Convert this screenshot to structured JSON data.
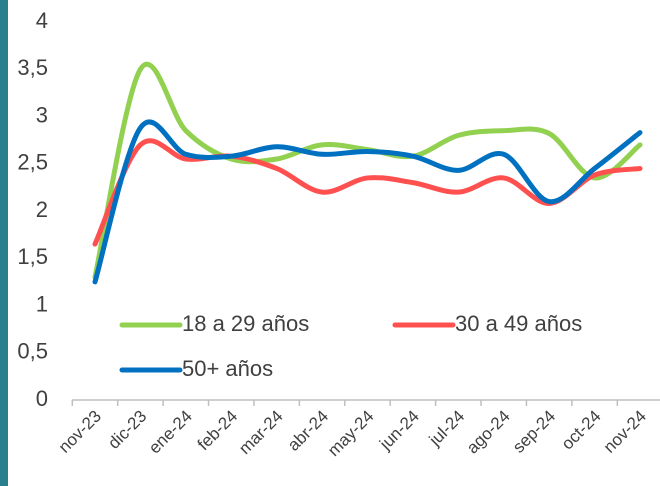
{
  "chart_data": {
    "type": "line",
    "categories": [
      "nov-23",
      "dic-23",
      "ene-24",
      "feb-24",
      "mar-24",
      "abr-24",
      "may-24",
      "jun-24",
      "jul-24",
      "ago-24",
      "sep-24",
      "oct-24",
      "nov-24"
    ],
    "series": [
      {
        "name": "18 a 29 años",
        "color": "#92d050",
        "values": [
          1.3,
          3.5,
          2.85,
          2.55,
          2.55,
          2.7,
          2.65,
          2.58,
          2.8,
          2.85,
          2.82,
          2.35,
          2.7
        ]
      },
      {
        "name": "30 a 49 años",
        "color": "#ff5050",
        "values": [
          1.65,
          2.7,
          2.55,
          2.58,
          2.45,
          2.2,
          2.35,
          2.3,
          2.2,
          2.35,
          2.08,
          2.38,
          2.45
        ]
      },
      {
        "name": "50+ años",
        "color": "#0070c0",
        "values": [
          1.25,
          2.88,
          2.6,
          2.58,
          2.68,
          2.6,
          2.63,
          2.58,
          2.43,
          2.6,
          2.1,
          2.45,
          2.83
        ]
      }
    ],
    "ylim": [
      0,
      4
    ],
    "yticks": [
      0,
      {
        "value": 0.5,
        "label": "0,5"
      },
      1,
      {
        "value": 1.5,
        "label": "1,5"
      },
      2,
      {
        "value": 2.5,
        "label": "2,5"
      },
      3,
      {
        "value": 3.5,
        "label": "3,5"
      },
      4
    ],
    "grid": false
  }
}
